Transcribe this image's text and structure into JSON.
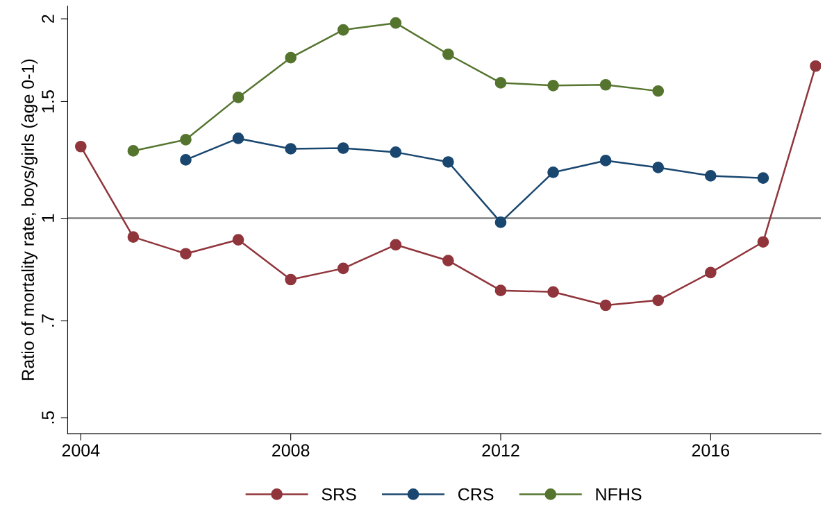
{
  "chart_data": {
    "type": "line",
    "ylabel": "Ratio of mortality rate, boys/girls (age 0-1)",
    "log": "y",
    "marker": "circle",
    "line_style": "solid",
    "grid": false,
    "legend": "bottom",
    "xlim": [
      2003.75,
      2018.1
    ],
    "xticks": [
      2004,
      2008,
      2012,
      2016
    ],
    "ylim": [
      0.473,
      2.09
    ],
    "yticks": [
      {
        "value": 0.5,
        "label": ".5"
      },
      {
        "value": 0.7,
        "label": ".7"
      },
      1,
      1.5,
      2
    ],
    "ref_lines": [
      {
        "axis": "y",
        "value": 1,
        "color": "#808080"
      }
    ],
    "series": [
      {
        "name": "SRS",
        "color": "#90353b",
        "x": [
          2004,
          2005,
          2006,
          2007,
          2008,
          2009,
          2010,
          2011,
          2012,
          2013,
          2014,
          2015,
          2016,
          2017,
          2018
        ],
        "values": [
          1.283,
          0.937,
          0.884,
          0.928,
          0.808,
          0.84,
          0.912,
          0.863,
          0.778,
          0.774,
          0.739,
          0.752,
          0.828,
          0.921,
          1.697
        ]
      },
      {
        "name": "CRS",
        "color": "#1a476f",
        "x": [
          2006,
          2007,
          2008,
          2009,
          2010,
          2011,
          2012,
          2013,
          2014,
          2015,
          2016,
          2017
        ],
        "values": [
          1.225,
          1.32,
          1.273,
          1.276,
          1.258,
          1.216,
          0.986,
          1.173,
          1.222,
          1.193,
          1.159,
          1.15
        ]
      },
      {
        "name": "NFHS",
        "color": "#55752f",
        "x": [
          2005,
          2006,
          2007,
          2008,
          2009,
          2010,
          2011,
          2012,
          2013,
          2014,
          2015
        ],
        "values": [
          1.264,
          1.314,
          1.522,
          1.747,
          1.924,
          1.971,
          1.768,
          1.601,
          1.586,
          1.59,
          1.556
        ]
      }
    ]
  }
}
